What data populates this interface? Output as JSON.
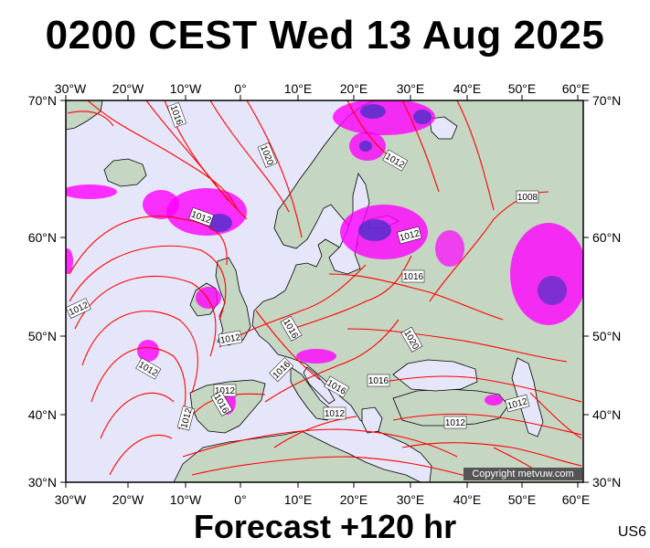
{
  "header": {
    "title": "0200 CEST Wed 13 Aug 2025"
  },
  "footer": {
    "forecast": "Forecast +120 hr",
    "model_code": "US6"
  },
  "copyright": "Copyright metvuw.com",
  "map": {
    "lon_labels": [
      "30°W",
      "20°W",
      "10°W",
      "0°",
      "10°E",
      "20°E",
      "30°E",
      "40°E",
      "50°E",
      "60°E"
    ],
    "lat_labels": [
      "70°N",
      "60°N",
      "50°N",
      "40°N",
      "30°N"
    ],
    "isobar_labels": [
      "1016",
      "1020",
      "1012",
      "1012",
      "1008",
      "1012",
      "1016",
      "1012",
      "1016",
      "1020",
      "1016",
      "1012",
      "1012",
      "1012",
      "1016",
      "1016",
      "1012",
      "1016",
      "1012",
      "1012",
      "1012"
    ],
    "colors": {
      "ocean": "#e6e6fa",
      "land": "#c5d6c3",
      "isobar": "#ff0000",
      "precip": "#ff00ff",
      "precip_heavy": "#3030c0"
    }
  }
}
